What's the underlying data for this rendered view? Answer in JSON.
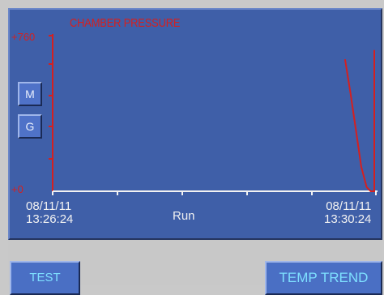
{
  "chart": {
    "title": "CHAMBER PRESSURE",
    "y_max_label": "+760",
    "y_min_label": "+0",
    "start_date": "08/11/11",
    "start_time": "13:26:24",
    "end_date": "08/11/11",
    "end_time": "13:30:24",
    "x_center_label": "Run"
  },
  "side_buttons": {
    "m_label": "M",
    "g_label": "G"
  },
  "bottom_buttons": {
    "test_label": "TEST",
    "temp_trend_label": "TEMP TREND"
  },
  "colors": {
    "panel": "#3f5fa8",
    "trace": "#d42020",
    "axis_label": "#d42020",
    "button_text": "#7ee0ff"
  },
  "chart_data": {
    "type": "line",
    "title": "CHAMBER PRESSURE",
    "ylim": [
      0,
      760
    ],
    "xlim_seconds": [
      0,
      240
    ],
    "x_start": "08/11/11 13:26:24",
    "x_end": "08/11/11 13:30:24",
    "series": [
      {
        "points": [
          [
            216,
            645
          ],
          [
            220,
            480
          ],
          [
            224,
            300
          ],
          [
            228,
            120
          ],
          [
            232,
            20
          ],
          [
            235,
            0
          ],
          [
            256,
            0
          ],
          [
            260,
            170
          ],
          [
            264,
            420
          ],
          [
            268,
            640
          ],
          [
            272,
            690
          ],
          [
            276,
            690
          ]
        ]
      }
    ]
  }
}
